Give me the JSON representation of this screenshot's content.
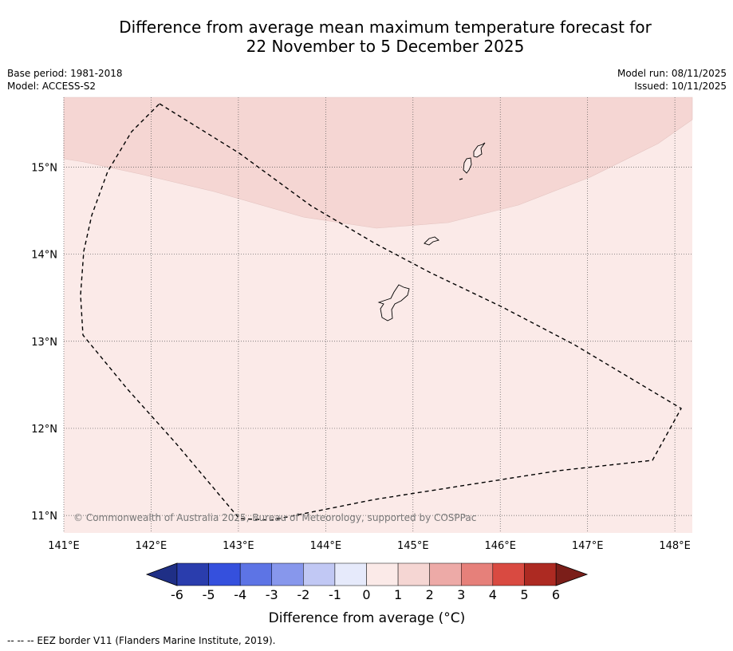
{
  "title_line1": "Difference from average mean maximum temperature forecast for",
  "title_line2": "22 November to 5 December 2025",
  "meta": {
    "base_period": "Base period: 1981-2018",
    "model": "Model: ACCESS-S2",
    "model_run": "Model run: 08/11/2025",
    "issued": "Issued: 10/11/2025"
  },
  "map": {
    "lon_range": [
      141.0,
      148.2
    ],
    "lat_range": [
      10.8,
      15.8
    ],
    "lon_ticks": [
      {
        "value": 141,
        "label": "141°E"
      },
      {
        "value": 142,
        "label": "142°E"
      },
      {
        "value": 143,
        "label": "143°E"
      },
      {
        "value": 144,
        "label": "144°E"
      },
      {
        "value": 145,
        "label": "145°E"
      },
      {
        "value": 146,
        "label": "146°E"
      },
      {
        "value": 147,
        "label": "147°E"
      },
      {
        "value": 148,
        "label": "148°E"
      }
    ],
    "lat_ticks": [
      {
        "value": 15,
        "label": "15°N"
      },
      {
        "value": 14,
        "label": "14°N"
      },
      {
        "value": 13,
        "label": "13°N"
      },
      {
        "value": 12,
        "label": "12°N"
      },
      {
        "value": 11,
        "label": "11°N"
      }
    ],
    "copyright": "© Commonwealth of Australia 2025, Bureau of Meteorology, supported by COSPPac",
    "zones": [
      {
        "anomaly_range": "0 to 1",
        "color": "#fbeae8"
      },
      {
        "anomaly_range": "1 to 2",
        "color": "#f5d6d3"
      }
    ]
  },
  "colorbar": {
    "ticks": [
      "-6",
      "-5",
      "-4",
      "-3",
      "-2",
      "-1",
      "0",
      "1",
      "2",
      "3",
      "4",
      "5",
      "6"
    ],
    "colors": [
      "#2a3dad",
      "#3550dd",
      "#5d74e5",
      "#8797ec",
      "#c1c8f4",
      "#e6eafb",
      "#fbeae8",
      "#f5d6d3",
      "#edaaa7",
      "#e6807a",
      "#d94a41",
      "#ad2a22"
    ],
    "under_color": "#1f2f86",
    "over_color": "#7b1e19",
    "label": "Difference from average ($^\\circ$C)",
    "label_text": "Difference from average (°C)"
  },
  "footnote": "--  --  -- EEZ border V11 (Flanders Marine Institute, 2019)."
}
